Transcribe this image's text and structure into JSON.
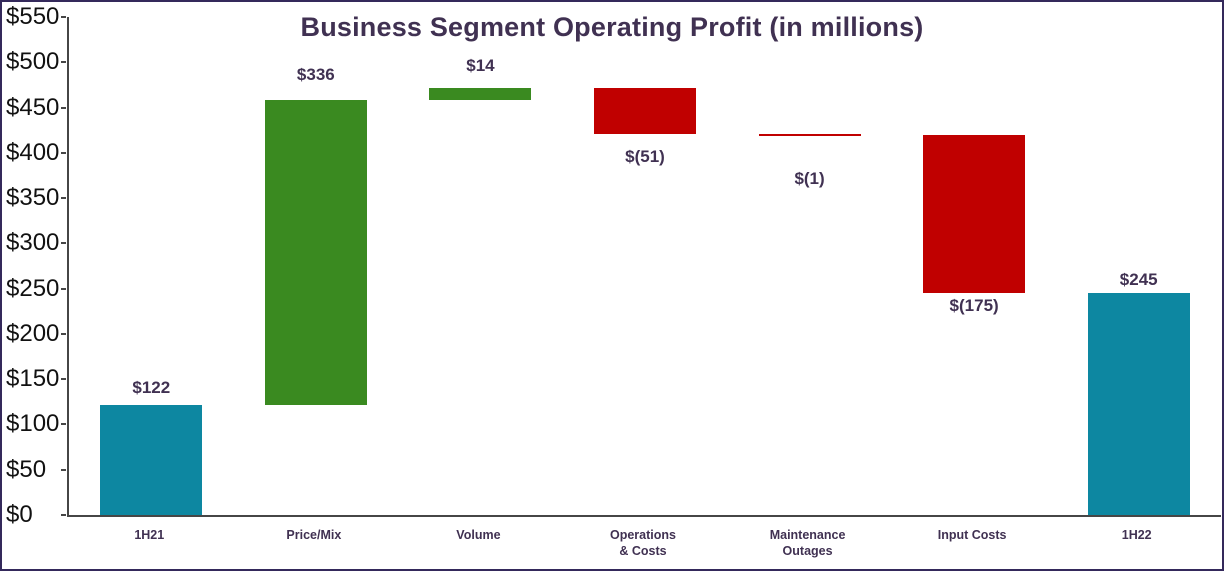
{
  "window": {
    "background": "#FFFFFF",
    "border_color": "#34295B"
  },
  "chart_data": {
    "type": "waterfall",
    "title": "Business Segment Operating Profit (in millions)",
    "xlabel": "",
    "ylabel": "",
    "ylim": [
      0,
      550
    ],
    "ytick_step": 50,
    "grid": false,
    "legend": "none",
    "yticks": [
      "$550",
      "$500",
      "$450",
      "$400",
      "$350",
      "$300",
      "$250",
      "$200",
      "$150",
      "$100",
      "$50",
      "$0"
    ],
    "categories": [
      "1H21",
      "Price/Mix",
      "Volume",
      "Operations\n& Costs",
      "Maintenance\nOutages",
      "Input Costs",
      "1H22"
    ],
    "bars": [
      {
        "category": "1H21",
        "display": "$122",
        "value": 122,
        "start": 0,
        "end": 122,
        "kind": "total",
        "label_pos": "above",
        "label_gap": 6
      },
      {
        "category": "Price/Mix",
        "display": "$336",
        "value": 336,
        "start": 122,
        "end": 458,
        "kind": "increase",
        "label_pos": "above",
        "label_gap": 14
      },
      {
        "category": "Volume",
        "display": "$14",
        "value": 14,
        "start": 458,
        "end": 472,
        "kind": "increase",
        "label_pos": "above",
        "label_gap": 11
      },
      {
        "category": "Operations & Costs",
        "display": "$(51)",
        "value": -51,
        "start": 472,
        "end": 421,
        "kind": "decrease",
        "label_pos": "below",
        "label_gap": 13
      },
      {
        "category": "Maintenance Outages",
        "display": "$(1)",
        "value": -1,
        "start": 421,
        "end": 420,
        "kind": "decrease",
        "label_pos": "below",
        "label_gap": 33
      },
      {
        "category": "Input Costs",
        "display": "$(175)",
        "value": -175,
        "start": 420,
        "end": 245,
        "kind": "decrease",
        "label_pos": "below",
        "label_gap": 3
      },
      {
        "category": "1H22",
        "display": "$245",
        "value": 245,
        "start": 0,
        "end": 245,
        "kind": "total",
        "label_pos": "above",
        "label_gap": 2
      }
    ],
    "colors": {
      "total": "#0D87A1",
      "increase": "#3A8A20",
      "decrease": "#C00000",
      "text": "#403152",
      "axis": "#464646",
      "tick_label": "#111111"
    }
  }
}
